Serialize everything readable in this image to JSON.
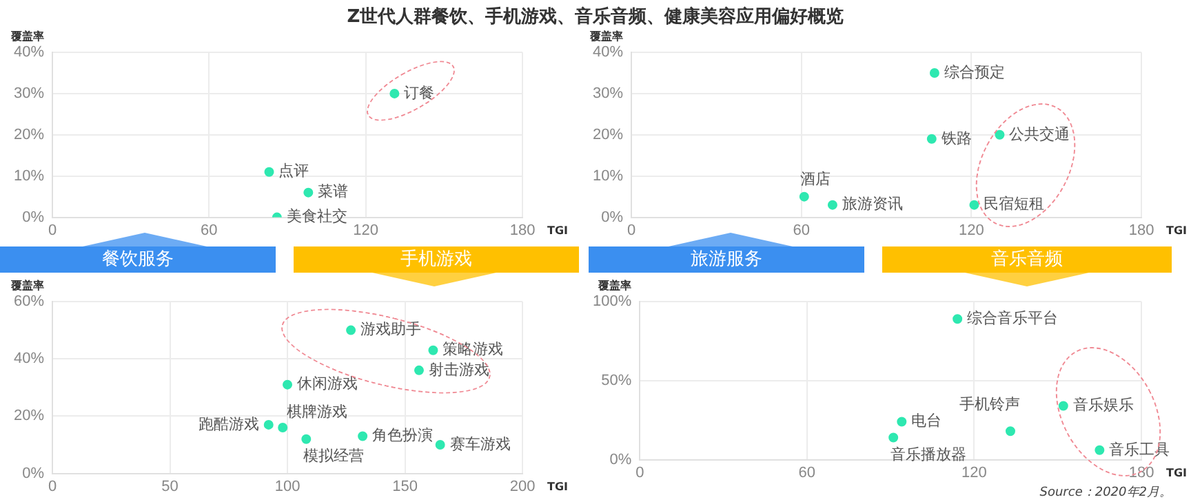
{
  "chart_data": [
    {
      "type": "scatter",
      "title": "Z世代人群餐饮、手机游戏、音乐音频、健康美容应用偏好概览",
      "subtitle": "餐饮服务",
      "xlabel": "TGI",
      "ylabel": "覆盖率",
      "xlim": [
        0,
        180
      ],
      "xticks": [
        0,
        60,
        120,
        180
      ],
      "ylim": [
        0,
        40
      ],
      "yticks": [
        {
          "value": 0,
          "label": "0%"
        },
        {
          "value": 10,
          "label": "10%"
        },
        {
          "value": 20,
          "label": "20%"
        },
        {
          "value": 30,
          "label": "30%"
        },
        {
          "value": 40,
          "label": "40%"
        }
      ],
      "grid": true,
      "legend": false,
      "marker": "circle",
      "series": [
        {
          "color": "#2ee8b0",
          "x": [
            131,
            83,
            98,
            86
          ],
          "values": [
            30,
            11,
            6,
            0
          ]
        }
      ],
      "annotations": [
        {
          "text": "订餐",
          "x": 131,
          "y": 30
        },
        {
          "text": "点评",
          "x": 83,
          "y": 11
        },
        {
          "text": "菜谱",
          "x": 98,
          "y": 6
        },
        {
          "text": "美食社交",
          "x": 86,
          "y": 0
        }
      ]
    },
    {
      "type": "scatter",
      "subtitle": "旅游服务",
      "xlabel": "TGI",
      "ylabel": "覆盖率",
      "xlim": [
        0,
        180
      ],
      "xticks": [
        0,
        60,
        120,
        180
      ],
      "ylim": [
        0,
        40
      ],
      "yticks": [
        {
          "value": 0,
          "label": "0%"
        },
        {
          "value": 10,
          "label": "10%"
        },
        {
          "value": 20,
          "label": "20%"
        },
        {
          "value": 30,
          "label": "30%"
        },
        {
          "value": 40,
          "label": "40%"
        }
      ],
      "grid": true,
      "legend": false,
      "marker": "circle",
      "series": [
        {
          "color": "#2ee8b0",
          "x": [
            107,
            106,
            130,
            61,
            71,
            121
          ],
          "values": [
            35,
            19,
            20,
            5,
            3,
            3
          ]
        }
      ],
      "annotations": [
        {
          "text": "综合预定",
          "x": 107,
          "y": 35
        },
        {
          "text": "铁路",
          "x": 106,
          "y": 19
        },
        {
          "text": "公共交通",
          "x": 130,
          "y": 20
        },
        {
          "text": "酒店",
          "x": 61,
          "y": 5
        },
        {
          "text": "旅游资讯",
          "x": 71,
          "y": 3
        },
        {
          "text": "民宿短租",
          "x": 121,
          "y": 3
        }
      ]
    },
    {
      "type": "scatter",
      "subtitle": "手机游戏",
      "xlabel": "TGI",
      "ylabel": "覆盖率",
      "xlim": [
        0,
        200
      ],
      "xticks": [
        0,
        50,
        100,
        150,
        200
      ],
      "ylim": [
        0,
        60
      ],
      "yticks": [
        {
          "value": 0,
          "label": "0%"
        },
        {
          "value": 20,
          "label": "20%"
        },
        {
          "value": 40,
          "label": "40%"
        },
        {
          "value": 60,
          "label": "60%"
        }
      ],
      "grid": true,
      "legend": false,
      "marker": "circle",
      "series": [
        {
          "color": "#2ee8b0",
          "x": [
            127,
            162,
            156,
            100,
            92,
            98,
            108,
            132,
            165
          ],
          "values": [
            50,
            43,
            36,
            31,
            17,
            16,
            12,
            13,
            10
          ]
        }
      ],
      "annotations": [
        {
          "text": "游戏助手",
          "x": 127,
          "y": 50
        },
        {
          "text": "策略游戏",
          "x": 162,
          "y": 43
        },
        {
          "text": "射击游戏",
          "x": 156,
          "y": 36
        },
        {
          "text": "休闲游戏",
          "x": 100,
          "y": 31
        },
        {
          "text": "跑酷游戏",
          "x": 92,
          "y": 17
        },
        {
          "text": "棋牌游戏",
          "x": 98,
          "y": 16
        },
        {
          "text": "模拟经营",
          "x": 108,
          "y": 12
        },
        {
          "text": "角色扮演",
          "x": 132,
          "y": 13
        },
        {
          "text": "赛车游戏",
          "x": 165,
          "y": 10
        }
      ]
    },
    {
      "type": "scatter",
      "subtitle": "音乐音频",
      "xlabel": "TGI",
      "ylabel": "覆盖率",
      "xlim": [
        0,
        180
      ],
      "xticks": [
        0,
        60,
        120,
        180
      ],
      "ylim": [
        0,
        100
      ],
      "yticks": [
        {
          "value": 0,
          "label": "0%"
        },
        {
          "value": 50,
          "label": "50%"
        },
        {
          "value": 100,
          "label": "100%"
        }
      ],
      "grid": true,
      "legend": false,
      "marker": "circle",
      "series": [
        {
          "color": "#2ee8b0",
          "x": [
            114,
            152,
            165,
            133,
            94,
            91
          ],
          "values": [
            89,
            34,
            6,
            18,
            24,
            14
          ]
        }
      ],
      "annotations": [
        {
          "text": "综合音乐平台",
          "x": 114,
          "y": 89
        },
        {
          "text": "音乐娱乐",
          "x": 152,
          "y": 34
        },
        {
          "text": "音乐工具",
          "x": 165,
          "y": 6
        },
        {
          "text": "手机铃声",
          "x": 133,
          "y": 18
        },
        {
          "text": "电台",
          "x": 94,
          "y": 24
        },
        {
          "text": "音乐播放器",
          "x": 91,
          "y": 14
        },
        "Source：2020年2月。"
      ]
    }
  ]
}
